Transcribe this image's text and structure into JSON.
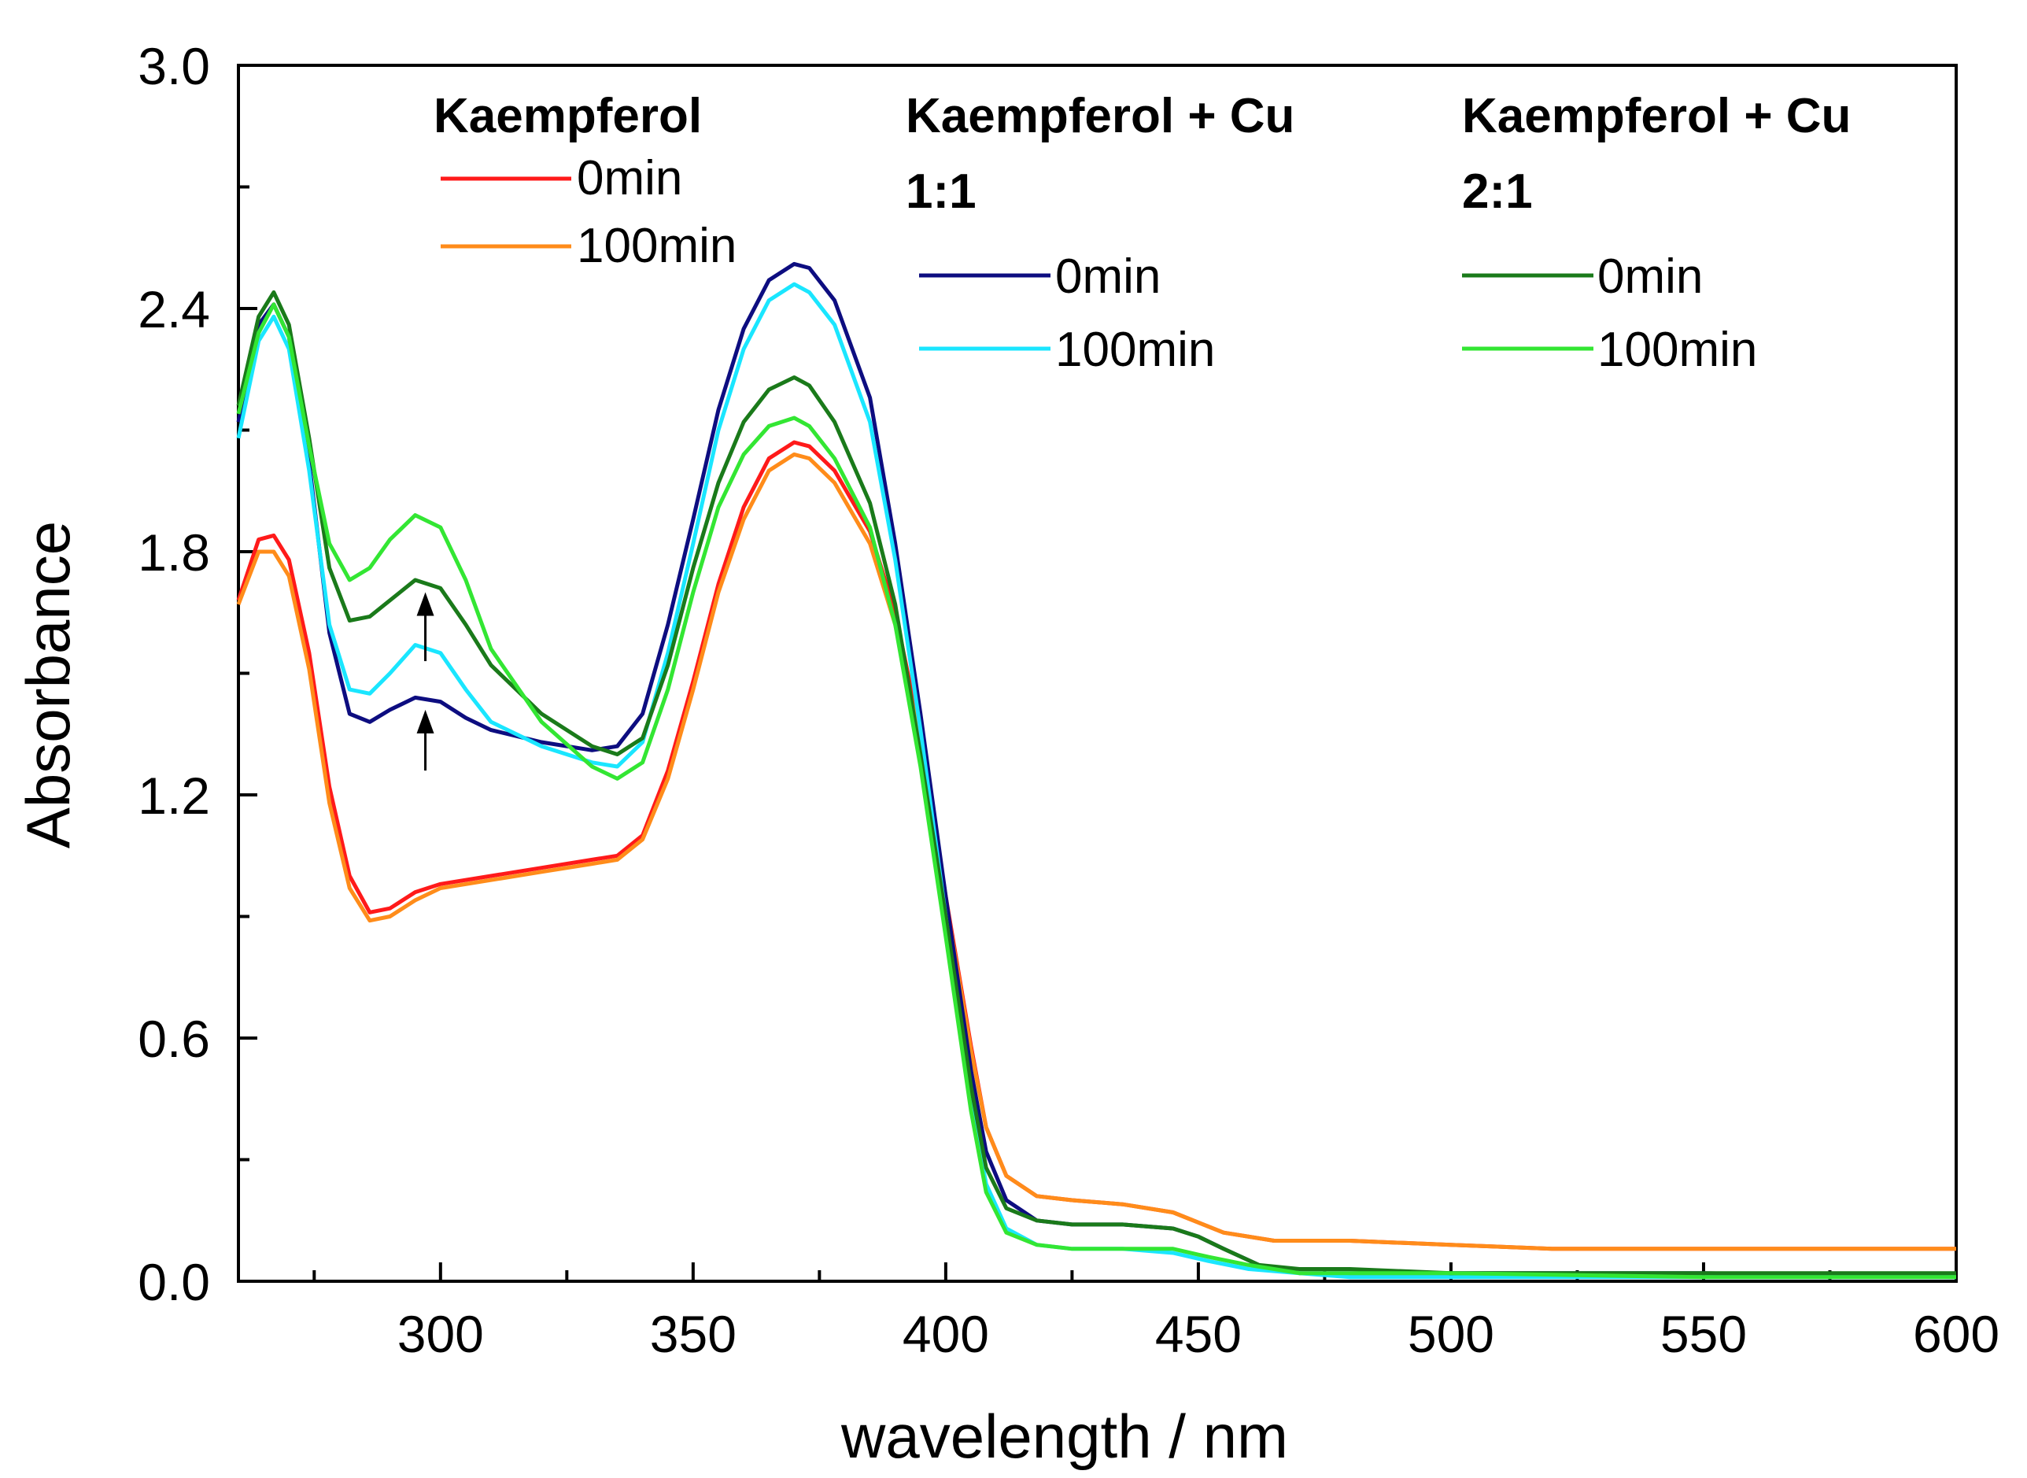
{
  "chart_data": {
    "type": "line",
    "title": "",
    "xlabel": "wavelength / nm",
    "ylabel": "Absorbance",
    "xlim": [
      260,
      600
    ],
    "ylim": [
      0,
      3.0
    ],
    "x_ticks": [
      300,
      350,
      400,
      450,
      500,
      550,
      600
    ],
    "y_ticks": [
      0.0,
      0.6,
      1.2,
      1.8,
      2.4,
      3.0
    ],
    "x_tick_labels": [
      "300",
      "350",
      "400",
      "450",
      "500",
      "550",
      "600"
    ],
    "y_tick_labels": [
      "0.0",
      "0.6",
      "1.2",
      "1.8",
      "2.4",
      "3.0"
    ],
    "legend_groups": [
      {
        "title_lines": [
          "Kaempferol"
        ],
        "entries": [
          "0min",
          "100min"
        ]
      },
      {
        "title_lines": [
          "Kaempferol + Cu",
          "1:1"
        ],
        "entries": [
          "0min",
          "100min"
        ]
      },
      {
        "title_lines": [
          "Kaempferol + Cu",
          "2:1"
        ],
        "entries": [
          "0min",
          "100min"
        ]
      }
    ],
    "annotations": [
      {
        "type": "arrow",
        "x": 297,
        "y_from": 1.26,
        "y_to": 1.41,
        "label": "increase"
      },
      {
        "type": "arrow",
        "x": 297,
        "y_from": 1.53,
        "y_to": 1.7,
        "label": "increase"
      }
    ],
    "series": [
      {
        "name": "Kaempferol 0min",
        "color": "#ff1a1a",
        "points": [
          [
            260,
            1.68
          ],
          [
            264,
            1.83
          ],
          [
            267,
            1.84
          ],
          [
            270,
            1.78
          ],
          [
            274,
            1.55
          ],
          [
            278,
            1.22
          ],
          [
            282,
            1.0
          ],
          [
            286,
            0.91
          ],
          [
            290,
            0.92
          ],
          [
            295,
            0.96
          ],
          [
            300,
            0.98
          ],
          [
            310,
            1.0
          ],
          [
            320,
            1.02
          ],
          [
            330,
            1.04
          ],
          [
            335,
            1.05
          ],
          [
            340,
            1.1
          ],
          [
            345,
            1.26
          ],
          [
            350,
            1.48
          ],
          [
            355,
            1.72
          ],
          [
            360,
            1.91
          ],
          [
            365,
            2.03
          ],
          [
            370,
            2.07
          ],
          [
            373,
            2.06
          ],
          [
            378,
            2.0
          ],
          [
            385,
            1.85
          ],
          [
            390,
            1.65
          ],
          [
            395,
            1.35
          ],
          [
            400,
            0.95
          ],
          [
            405,
            0.58
          ],
          [
            408,
            0.38
          ],
          [
            412,
            0.26
          ],
          [
            418,
            0.21
          ],
          [
            425,
            0.2
          ],
          [
            435,
            0.19
          ],
          [
            445,
            0.17
          ],
          [
            455,
            0.12
          ],
          [
            465,
            0.1
          ],
          [
            480,
            0.1
          ],
          [
            500,
            0.09
          ],
          [
            520,
            0.08
          ],
          [
            550,
            0.08
          ],
          [
            580,
            0.08
          ],
          [
            600,
            0.08
          ]
        ]
      },
      {
        "name": "Kaempferol 100min",
        "color": "#ff8c1a",
        "points": [
          [
            260,
            1.67
          ],
          [
            264,
            1.8
          ],
          [
            267,
            1.8
          ],
          [
            270,
            1.74
          ],
          [
            274,
            1.51
          ],
          [
            278,
            1.18
          ],
          [
            282,
            0.97
          ],
          [
            286,
            0.89
          ],
          [
            290,
            0.9
          ],
          [
            295,
            0.94
          ],
          [
            300,
            0.97
          ],
          [
            310,
            0.99
          ],
          [
            320,
            1.01
          ],
          [
            330,
            1.03
          ],
          [
            335,
            1.04
          ],
          [
            340,
            1.09
          ],
          [
            345,
            1.24
          ],
          [
            350,
            1.46
          ],
          [
            355,
            1.7
          ],
          [
            360,
            1.88
          ],
          [
            365,
            2.0
          ],
          [
            370,
            2.04
          ],
          [
            373,
            2.03
          ],
          [
            378,
            1.97
          ],
          [
            385,
            1.82
          ],
          [
            390,
            1.62
          ],
          [
            395,
            1.33
          ],
          [
            400,
            0.94
          ],
          [
            405,
            0.57
          ],
          [
            408,
            0.38
          ],
          [
            412,
            0.26
          ],
          [
            418,
            0.21
          ],
          [
            425,
            0.2
          ],
          [
            435,
            0.19
          ],
          [
            445,
            0.17
          ],
          [
            455,
            0.12
          ],
          [
            465,
            0.1
          ],
          [
            480,
            0.1
          ],
          [
            500,
            0.09
          ],
          [
            520,
            0.08
          ],
          [
            550,
            0.08
          ],
          [
            580,
            0.08
          ],
          [
            600,
            0.08
          ]
        ]
      },
      {
        "name": "Kaempferol + Cu 1:1 0min",
        "color": "#0d0d80",
        "points": [
          [
            260,
            2.12
          ],
          [
            264,
            2.36
          ],
          [
            267,
            2.41
          ],
          [
            270,
            2.33
          ],
          [
            274,
            2.02
          ],
          [
            278,
            1.6
          ],
          [
            282,
            1.4
          ],
          [
            286,
            1.38
          ],
          [
            290,
            1.41
          ],
          [
            295,
            1.44
          ],
          [
            300,
            1.43
          ],
          [
            305,
            1.39
          ],
          [
            310,
            1.36
          ],
          [
            320,
            1.33
          ],
          [
            330,
            1.31
          ],
          [
            335,
            1.32
          ],
          [
            340,
            1.4
          ],
          [
            345,
            1.62
          ],
          [
            350,
            1.88
          ],
          [
            355,
            2.15
          ],
          [
            360,
            2.35
          ],
          [
            365,
            2.47
          ],
          [
            370,
            2.51
          ],
          [
            373,
            2.5
          ],
          [
            378,
            2.42
          ],
          [
            385,
            2.18
          ],
          [
            390,
            1.82
          ],
          [
            395,
            1.4
          ],
          [
            400,
            0.95
          ],
          [
            405,
            0.52
          ],
          [
            408,
            0.32
          ],
          [
            412,
            0.2
          ],
          [
            418,
            0.15
          ],
          [
            425,
            0.14
          ],
          [
            435,
            0.14
          ],
          [
            445,
            0.13
          ],
          [
            450,
            0.11
          ],
          [
            455,
            0.08
          ],
          [
            462,
            0.04
          ],
          [
            470,
            0.02
          ],
          [
            480,
            0.02
          ],
          [
            500,
            0.02
          ],
          [
            550,
            0.02
          ],
          [
            600,
            0.01
          ]
        ]
      },
      {
        "name": "Kaempferol + Cu 1:1 100min",
        "color": "#1ae6ff",
        "points": [
          [
            260,
            2.08
          ],
          [
            264,
            2.32
          ],
          [
            267,
            2.38
          ],
          [
            270,
            2.3
          ],
          [
            274,
            2.0
          ],
          [
            278,
            1.62
          ],
          [
            282,
            1.46
          ],
          [
            286,
            1.45
          ],
          [
            290,
            1.5
          ],
          [
            295,
            1.57
          ],
          [
            300,
            1.55
          ],
          [
            305,
            1.46
          ],
          [
            310,
            1.38
          ],
          [
            320,
            1.32
          ],
          [
            330,
            1.28
          ],
          [
            335,
            1.27
          ],
          [
            340,
            1.33
          ],
          [
            345,
            1.55
          ],
          [
            350,
            1.82
          ],
          [
            355,
            2.1
          ],
          [
            360,
            2.3
          ],
          [
            365,
            2.42
          ],
          [
            370,
            2.46
          ],
          [
            373,
            2.44
          ],
          [
            378,
            2.36
          ],
          [
            385,
            2.12
          ],
          [
            390,
            1.78
          ],
          [
            395,
            1.36
          ],
          [
            400,
            0.9
          ],
          [
            405,
            0.45
          ],
          [
            408,
            0.24
          ],
          [
            412,
            0.13
          ],
          [
            418,
            0.09
          ],
          [
            425,
            0.08
          ],
          [
            435,
            0.08
          ],
          [
            445,
            0.07
          ],
          [
            452,
            0.05
          ],
          [
            460,
            0.03
          ],
          [
            470,
            0.02
          ],
          [
            480,
            0.01
          ],
          [
            500,
            0.01
          ],
          [
            550,
            0.01
          ],
          [
            600,
            0.01
          ]
        ]
      },
      {
        "name": "Kaempferol + Cu 2:1 0min",
        "color": "#1a7a1a",
        "points": [
          [
            260,
            2.16
          ],
          [
            264,
            2.38
          ],
          [
            267,
            2.44
          ],
          [
            270,
            2.36
          ],
          [
            274,
            2.08
          ],
          [
            278,
            1.76
          ],
          [
            282,
            1.63
          ],
          [
            286,
            1.64
          ],
          [
            290,
            1.68
          ],
          [
            295,
            1.73
          ],
          [
            300,
            1.71
          ],
          [
            305,
            1.62
          ],
          [
            310,
            1.52
          ],
          [
            320,
            1.4
          ],
          [
            330,
            1.32
          ],
          [
            335,
            1.3
          ],
          [
            340,
            1.34
          ],
          [
            345,
            1.52
          ],
          [
            350,
            1.76
          ],
          [
            355,
            1.97
          ],
          [
            360,
            2.12
          ],
          [
            365,
            2.2
          ],
          [
            370,
            2.23
          ],
          [
            373,
            2.21
          ],
          [
            378,
            2.12
          ],
          [
            385,
            1.92
          ],
          [
            390,
            1.67
          ],
          [
            395,
            1.3
          ],
          [
            400,
            0.9
          ],
          [
            405,
            0.48
          ],
          [
            408,
            0.28
          ],
          [
            412,
            0.18
          ],
          [
            418,
            0.15
          ],
          [
            425,
            0.14
          ],
          [
            435,
            0.14
          ],
          [
            445,
            0.13
          ],
          [
            450,
            0.11
          ],
          [
            455,
            0.08
          ],
          [
            462,
            0.04
          ],
          [
            470,
            0.03
          ],
          [
            480,
            0.03
          ],
          [
            500,
            0.02
          ],
          [
            550,
            0.02
          ],
          [
            600,
            0.02
          ]
        ]
      },
      {
        "name": "Kaempferol + Cu 2:1 100min",
        "color": "#33e633",
        "points": [
          [
            260,
            2.14
          ],
          [
            264,
            2.34
          ],
          [
            267,
            2.41
          ],
          [
            270,
            2.33
          ],
          [
            274,
            2.06
          ],
          [
            278,
            1.82
          ],
          [
            282,
            1.73
          ],
          [
            286,
            1.76
          ],
          [
            290,
            1.83
          ],
          [
            295,
            1.89
          ],
          [
            300,
            1.86
          ],
          [
            305,
            1.73
          ],
          [
            310,
            1.56
          ],
          [
            320,
            1.38
          ],
          [
            330,
            1.27
          ],
          [
            335,
            1.24
          ],
          [
            340,
            1.28
          ],
          [
            345,
            1.46
          ],
          [
            350,
            1.7
          ],
          [
            355,
            1.91
          ],
          [
            360,
            2.04
          ],
          [
            365,
            2.11
          ],
          [
            370,
            2.13
          ],
          [
            373,
            2.11
          ],
          [
            378,
            2.03
          ],
          [
            385,
            1.86
          ],
          [
            390,
            1.62
          ],
          [
            395,
            1.27
          ],
          [
            400,
            0.85
          ],
          [
            405,
            0.42
          ],
          [
            408,
            0.22
          ],
          [
            412,
            0.12
          ],
          [
            418,
            0.09
          ],
          [
            425,
            0.08
          ],
          [
            435,
            0.08
          ],
          [
            445,
            0.08
          ],
          [
            452,
            0.06
          ],
          [
            460,
            0.04
          ],
          [
            470,
            0.02
          ],
          [
            480,
            0.02
          ],
          [
            500,
            0.02
          ],
          [
            550,
            0.01
          ],
          [
            600,
            0.01
          ]
        ]
      }
    ]
  }
}
